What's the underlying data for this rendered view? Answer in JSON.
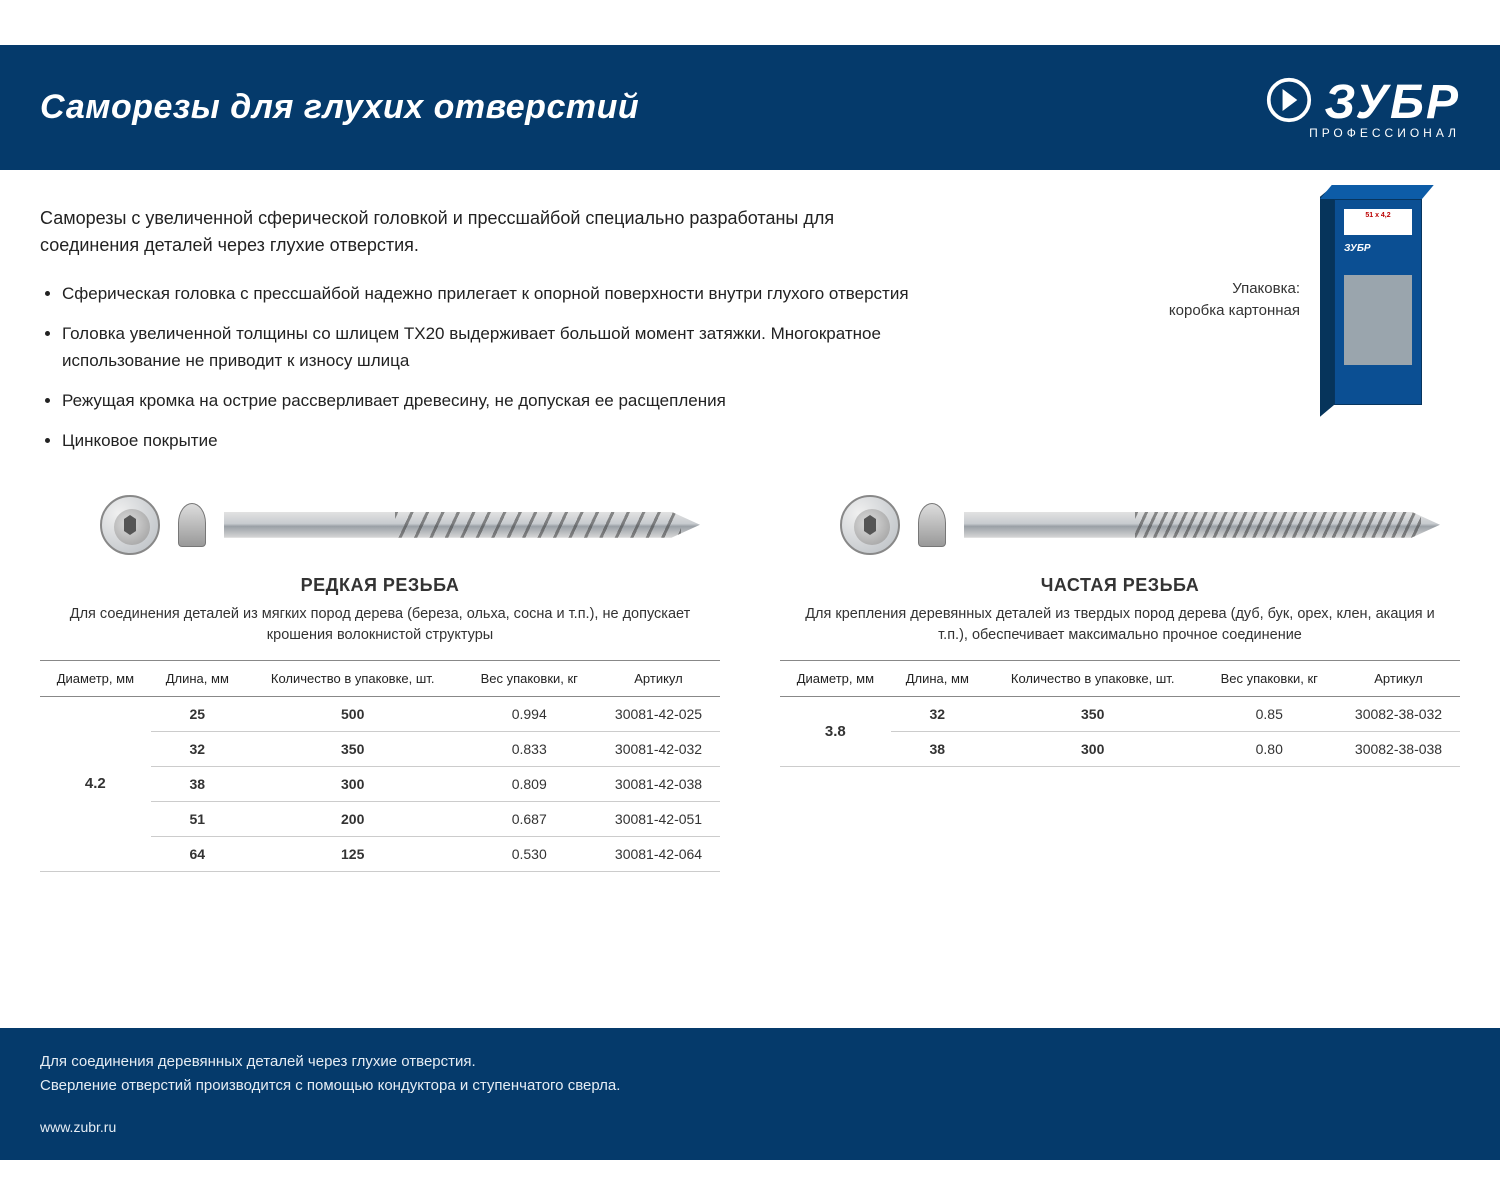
{
  "colors": {
    "header_bg": "#053a6b",
    "body_bg": "#ffffff",
    "text": "#222222",
    "table_border": "#888888",
    "row_border": "#cccccc"
  },
  "header": {
    "title": "Саморезы для глухих отверстий",
    "brand": "ЗУБР",
    "brand_sub": "ПРОФЕССИОНАЛ"
  },
  "intro": "Саморезы с увеличенной сферической головкой и прессшайбой специально разработаны для соединения деталей через глухие отверстия.",
  "bullets": [
    "Сферическая головка с прессшайбой надежно прилегает к опорной поверхности внутри глухого отверстия",
    "Головка увеличенной толщины со шлицем TX20 выдерживает большой момент затяжки. Многократное использование не приводит к износу шлица",
    "Режущая кромка на острие рассверливает древесину, не допуская ее расщепления",
    "Цинковое покрытие"
  ],
  "package": {
    "label_l1": "Упаковка:",
    "label_l2": "коробка картонная",
    "box_label": "51 x 4,2"
  },
  "table_headers": {
    "diameter": "Диаметр, мм",
    "length": "Длина, мм",
    "qty": "Количество в упаковке, шт.",
    "weight": "Вес упаковки, кг",
    "sku": "Артикул"
  },
  "left": {
    "title": "РЕДКАЯ РЕЗЬБА",
    "desc": "Для соединения деталей из мягких пород дерева (береза, ольха, сосна и т.п.), не допускает крошения волокнистой структуры",
    "diameter": "4.2",
    "rows": [
      {
        "length": "25",
        "qty": "500",
        "weight": "0.994",
        "sku": "30081-42-025"
      },
      {
        "length": "32",
        "qty": "350",
        "weight": "0.833",
        "sku": "30081-42-032"
      },
      {
        "length": "38",
        "qty": "300",
        "weight": "0.809",
        "sku": "30081-42-038"
      },
      {
        "length": "51",
        "qty": "200",
        "weight": "0.687",
        "sku": "30081-42-051"
      },
      {
        "length": "64",
        "qty": "125",
        "weight": "0.530",
        "sku": "30081-42-064"
      }
    ]
  },
  "right": {
    "title": "ЧАСТАЯ РЕЗЬБА",
    "desc": "Для крепления деревянных деталей из твердых пород дерева (дуб, бук, орех, клен, акация и т.п.), обеспечивает максимально прочное соединение",
    "diameter": "3.8",
    "rows": [
      {
        "length": "32",
        "qty": "350",
        "weight": "0.85",
        "sku": "30082-38-032"
      },
      {
        "length": "38",
        "qty": "300",
        "weight": "0.80",
        "sku": "30082-38-038"
      }
    ]
  },
  "footer": {
    "line1": "Для соединения деревянных деталей через глухие отверстия.",
    "line2": "Сверление отверстий производится с помощью кондуктора и ступенчатого сверла.",
    "url": "www.zubr.ru"
  }
}
